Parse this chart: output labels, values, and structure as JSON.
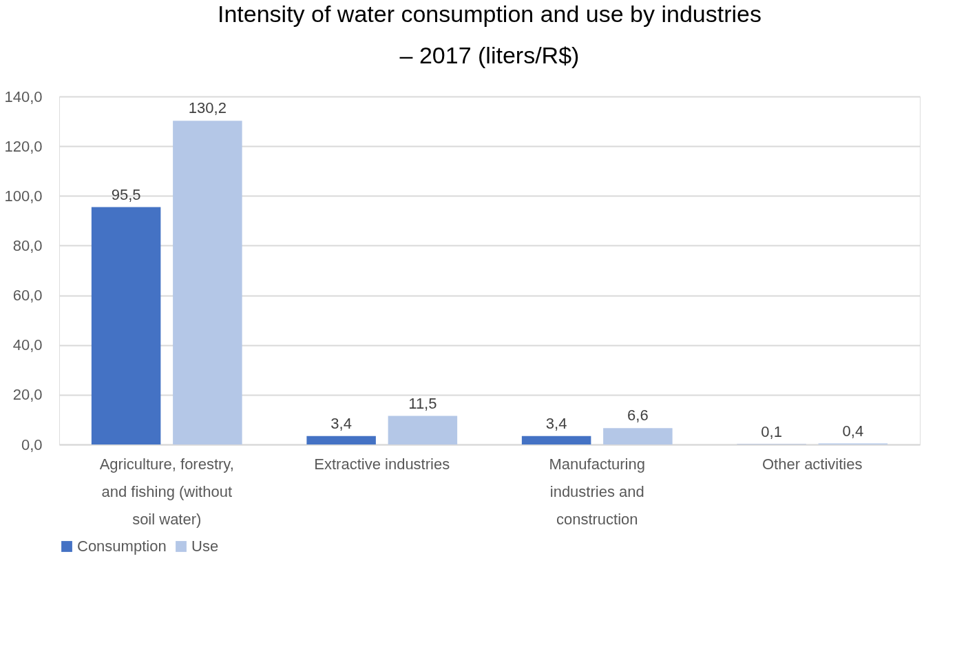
{
  "chart_data": {
    "type": "bar",
    "title": "Intensity of water consumption and use by industries – 2017 (liters/R$)",
    "categories": [
      "Agriculture, forestry, and fishing (without soil water)",
      "Extractive industries",
      "Manufacturing industries and construction",
      "Other activities"
    ],
    "series": [
      {
        "name": "Consumption",
        "color": "#4472c4",
        "values": [
          95.5,
          3.4,
          3.4,
          0.1
        ],
        "value_labels": [
          "95,5",
          "3,4",
          "3,4",
          "0,1"
        ]
      },
      {
        "name": "Use",
        "color": "#b4c7e7",
        "values": [
          130.2,
          11.5,
          6.6,
          0.4
        ],
        "value_labels": [
          "130,2",
          "11,5",
          "6,6",
          "0,4"
        ]
      }
    ],
    "ylim": [
      0,
      140
    ],
    "yticks": [
      {
        "value": 0,
        "label": "0,0"
      },
      {
        "value": 20,
        "label": "20,0"
      },
      {
        "value": 40,
        "label": "40,0"
      },
      {
        "value": 60,
        "label": "60,0"
      },
      {
        "value": 80,
        "label": "80,0"
      },
      {
        "value": 100,
        "label": "100,0"
      },
      {
        "value": 120,
        "label": "120,0"
      },
      {
        "value": 140,
        "label": "140,0"
      }
    ],
    "grid": "y",
    "legend": "bottom"
  }
}
